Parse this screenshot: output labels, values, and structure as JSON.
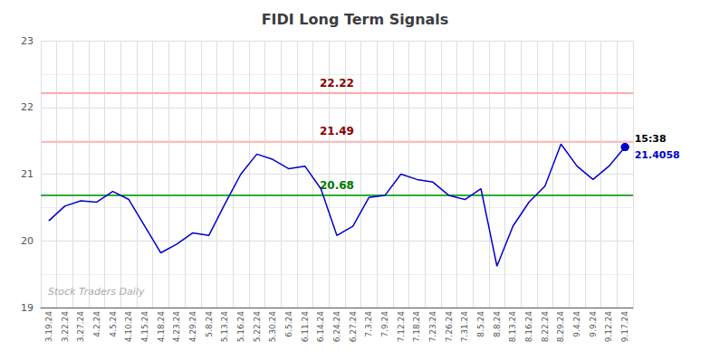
{
  "chart_data": {
    "type": "line",
    "title": "FIDI Long Term Signals",
    "categories": [
      "3.19.24",
      "3.22.24",
      "3.27.24",
      "4.2.24",
      "4.5.24",
      "4.10.24",
      "4.15.24",
      "4.18.24",
      "4.23.24",
      "4.29.24",
      "5.8.24",
      "5.13.24",
      "5.16.24",
      "5.22.24",
      "5.30.24",
      "6.5.24",
      "6.11.24",
      "6.14.24",
      "6.24.24",
      "6.27.24",
      "7.3.24",
      "7.9.24",
      "7.12.24",
      "7.18.24",
      "7.23.24",
      "7.26.24",
      "7.31.24",
      "8.5.24",
      "8.8.24",
      "8.13.24",
      "8.16.24",
      "8.22.24",
      "8.29.24",
      "9.4.24",
      "9.9.24",
      "9.12.24",
      "9.17.24"
    ],
    "values": [
      20.3,
      20.52,
      20.6,
      20.58,
      20.74,
      20.62,
      20.22,
      19.82,
      19.95,
      20.12,
      20.08,
      20.55,
      21.0,
      21.3,
      21.22,
      21.08,
      21.12,
      20.78,
      20.08,
      20.22,
      20.65,
      20.68,
      21.0,
      20.92,
      20.88,
      20.68,
      20.62,
      20.78,
      19.62,
      20.22,
      20.58,
      20.82,
      21.45,
      21.12,
      20.92,
      21.12,
      21.4058
    ],
    "color": "#0000cc",
    "ylim": [
      19,
      23
    ],
    "yticks": [
      19,
      20,
      21,
      22,
      23
    ],
    "grid": true,
    "hlines": [
      {
        "value": 20.68,
        "color": "#33aa33",
        "label": "20.68",
        "label_color": "#007700"
      },
      {
        "value": 22.22,
        "color": "#ffaaaa",
        "label": "22.22",
        "label_color": "#880000"
      },
      {
        "value": 21.49,
        "color": "#ffbbbb",
        "label": "21.49",
        "label_color": "#880000"
      }
    ],
    "annotations": [
      {
        "x": "9.17.24",
        "y": 21.4058,
        "text": "15:38"
      },
      {
        "x": "9.17.24",
        "y": 21.4058,
        "text": "21.4058",
        "color": "#0000cc"
      }
    ],
    "watermark": "Stock Traders Daily"
  }
}
